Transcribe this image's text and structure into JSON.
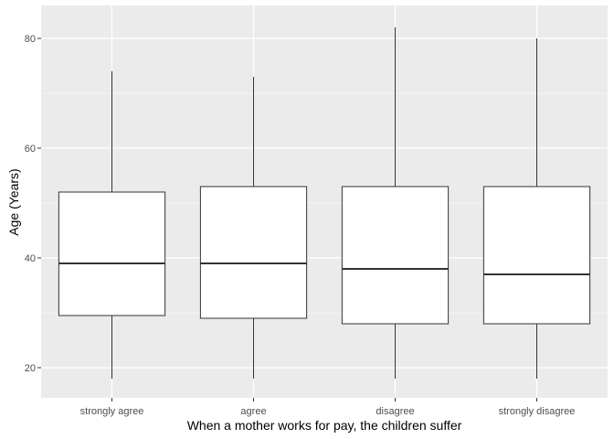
{
  "chart_data": {
    "type": "boxplot",
    "xlabel": "When a mother works for pay, the children suffer",
    "ylabel": "Age (Years)",
    "ylim": [
      14.5,
      86
    ],
    "yticks": [
      20,
      40,
      60,
      80
    ],
    "grid": true,
    "categories": [
      "strongly agree",
      "agree",
      "disagree",
      "strongly disagree"
    ],
    "boxes": [
      {
        "min": 18,
        "q1": 29.5,
        "median": 39,
        "q3": 52,
        "max": 74
      },
      {
        "min": 18,
        "q1": 29,
        "median": 39,
        "q3": 53,
        "max": 73
      },
      {
        "min": 18,
        "q1": 28,
        "median": 38,
        "q3": 53,
        "max": 82
      },
      {
        "min": 18,
        "q1": 28,
        "median": 37,
        "q3": 53,
        "max": 80
      }
    ],
    "colors": {
      "panel": "#ebebeb",
      "grid": "#ffffff",
      "box_fill": "#ffffff",
      "box_stroke": "#333333",
      "tick_text": "#4d4d4d"
    }
  }
}
